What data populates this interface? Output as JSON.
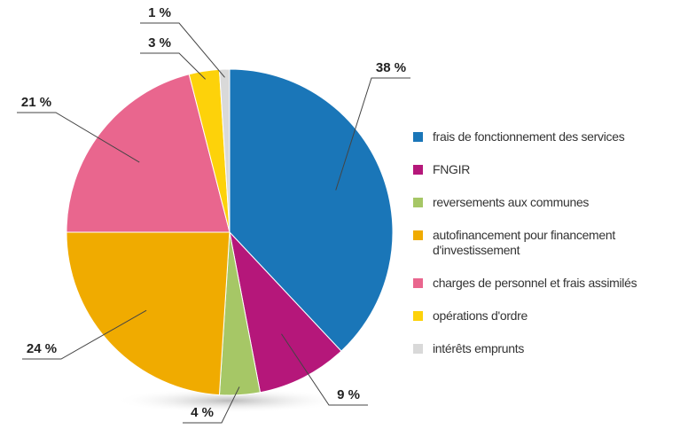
{
  "chart_data": {
    "type": "pie",
    "categories": [
      "frais de fonctionnement des services",
      "FNGIR",
      "reversements aux communes",
      "autofinancement pour financement d'investissement",
      "charges de personnel et frais assimilés",
      "opérations d'ordre",
      "intérêts emprunts"
    ],
    "values": [
      38,
      9,
      4,
      24,
      21,
      3,
      1
    ],
    "value_labels": [
      "38 %",
      "9 %",
      "4 %",
      "24 %",
      "21 %",
      "3 %",
      "1 %"
    ],
    "colors": [
      "#1a76b8",
      "#b5177a",
      "#a6c766",
      "#f0ab00",
      "#e9668e",
      "#fdd20a",
      "#d9d9d9"
    ],
    "legend": "right"
  }
}
